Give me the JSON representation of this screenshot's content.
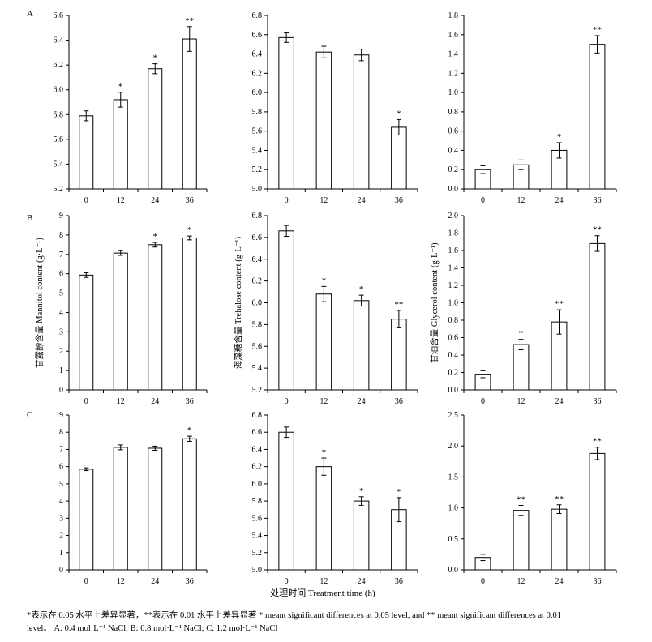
{
  "panel_labels": [
    "A",
    "B",
    "C"
  ],
  "shared_xlabel": "处理时间 Treatment time (h)",
  "caption": {
    "line1": "*表示在 0.05 水平上差异显著，**表示在 0.01 水平上差异显著 * meant significant differences at 0.05 level, and ** meant significant differences at 0.01",
    "line2": "level。 A: 0.4 mol·L⁻¹ NaCl; B: 0.8 mol·L⁻¹ NaCl; C: 1.2 mol·L⁻¹ NaCl"
  },
  "chart_data": [
    {
      "type": "bar",
      "row": "A",
      "col": 0,
      "categories": [
        "0",
        "12",
        "24",
        "36"
      ],
      "values": [
        5.79,
        5.92,
        6.17,
        6.41
      ],
      "errors": [
        0.04,
        0.06,
        0.04,
        0.1
      ],
      "significance": [
        "",
        "*",
        "*",
        "**"
      ],
      "ylim": [
        5.2,
        6.6
      ],
      "yticks": [
        "5.2",
        "5.4",
        "5.6",
        "5.8",
        "6.0",
        "6.2",
        "6.4",
        "6.6"
      ],
      "ylabel": ""
    },
    {
      "type": "bar",
      "row": "A",
      "col": 1,
      "categories": [
        "0",
        "12",
        "24",
        "36"
      ],
      "values": [
        6.57,
        6.42,
        6.39,
        5.64
      ],
      "errors": [
        0.05,
        0.06,
        0.06,
        0.08
      ],
      "significance": [
        "",
        "",
        "",
        "*"
      ],
      "ylim": [
        5.0,
        6.8
      ],
      "yticks": [
        "5.0",
        "5.2",
        "5.4",
        "5.6",
        "5.8",
        "6.0",
        "6.2",
        "6.4",
        "6.6",
        "6.8"
      ],
      "ylabel": ""
    },
    {
      "type": "bar",
      "row": "A",
      "col": 2,
      "categories": [
        "0",
        "12",
        "24",
        "36"
      ],
      "values": [
        0.2,
        0.25,
        0.4,
        1.5
      ],
      "errors": [
        0.04,
        0.05,
        0.08,
        0.09
      ],
      "significance": [
        "",
        "",
        "*",
        "**"
      ],
      "ylim": [
        0.0,
        1.8
      ],
      "yticks": [
        "0.0",
        "0.2",
        "0.4",
        "0.6",
        "0.8",
        "1.0",
        "1.2",
        "1.4",
        "1.6",
        "1.8"
      ],
      "ylabel": ""
    },
    {
      "type": "bar",
      "row": "B",
      "col": 0,
      "categories": [
        "0",
        "12",
        "24",
        "36"
      ],
      "values": [
        5.93,
        7.07,
        7.5,
        7.85
      ],
      "errors": [
        0.12,
        0.12,
        0.12,
        0.1
      ],
      "significance": [
        "",
        "",
        "*",
        "*"
      ],
      "ylim": [
        0,
        9
      ],
      "yticks": [
        "0",
        "1",
        "2",
        "3",
        "4",
        "5",
        "6",
        "7",
        "8",
        "9"
      ],
      "ylabel": "甘露醇含量 Mannitol content (g·L⁻¹)"
    },
    {
      "type": "bar",
      "row": "B",
      "col": 1,
      "categories": [
        "0",
        "12",
        "24",
        "36"
      ],
      "values": [
        6.66,
        6.08,
        6.02,
        5.85
      ],
      "errors": [
        0.05,
        0.07,
        0.05,
        0.08
      ],
      "significance": [
        "",
        "*",
        "*",
        "**"
      ],
      "ylim": [
        5.2,
        6.8
      ],
      "yticks": [
        "5.2",
        "5.4",
        "5.6",
        "5.8",
        "6.0",
        "6.2",
        "6.4",
        "6.6",
        "6.8"
      ],
      "ylabel": "海藻糖含量 Trehalose content (g·L⁻¹)"
    },
    {
      "type": "bar",
      "row": "B",
      "col": 2,
      "categories": [
        "0",
        "12",
        "24",
        "36"
      ],
      "values": [
        0.18,
        0.52,
        0.78,
        1.68
      ],
      "errors": [
        0.04,
        0.06,
        0.14,
        0.09
      ],
      "significance": [
        "",
        "*",
        "**",
        "**"
      ],
      "ylim": [
        0.0,
        2.0
      ],
      "yticks": [
        "0.0",
        "0.2",
        "0.4",
        "0.6",
        "0.8",
        "1.0",
        "1.2",
        "1.4",
        "1.6",
        "1.8",
        "2.0"
      ],
      "ylabel": "甘油含量 Glycerol content (g·L⁻¹)"
    },
    {
      "type": "bar",
      "row": "C",
      "col": 0,
      "categories": [
        "0",
        "12",
        "24",
        "36"
      ],
      "values": [
        5.85,
        7.12,
        7.07,
        7.62
      ],
      "errors": [
        0.08,
        0.14,
        0.12,
        0.15
      ],
      "significance": [
        "",
        "",
        "",
        "*"
      ],
      "ylim": [
        0,
        9
      ],
      "yticks": [
        "0",
        "1",
        "2",
        "3",
        "4",
        "5",
        "6",
        "7",
        "8",
        "9"
      ],
      "ylabel": ""
    },
    {
      "type": "bar",
      "row": "C",
      "col": 1,
      "categories": [
        "0",
        "12",
        "24",
        "36"
      ],
      "values": [
        6.6,
        6.2,
        5.8,
        5.7
      ],
      "errors": [
        0.06,
        0.1,
        0.05,
        0.14
      ],
      "significance": [
        "",
        "*",
        "*",
        "*"
      ],
      "ylim": [
        5.0,
        6.8
      ],
      "yticks": [
        "5.0",
        "5.2",
        "5.4",
        "5.6",
        "5.8",
        "6.0",
        "6.2",
        "6.4",
        "6.6",
        "6.8"
      ],
      "ylabel": ""
    },
    {
      "type": "bar",
      "row": "C",
      "col": 2,
      "categories": [
        "0",
        "12",
        "24",
        "36"
      ],
      "values": [
        0.2,
        0.96,
        0.98,
        1.88
      ],
      "errors": [
        0.05,
        0.08,
        0.07,
        0.1
      ],
      "significance": [
        "",
        "**",
        "**",
        "**"
      ],
      "ylim": [
        0.0,
        2.5
      ],
      "yticks": [
        "0.0",
        "0.5",
        "1.0",
        "1.5",
        "2.0",
        "2.5"
      ],
      "ylabel": ""
    }
  ]
}
